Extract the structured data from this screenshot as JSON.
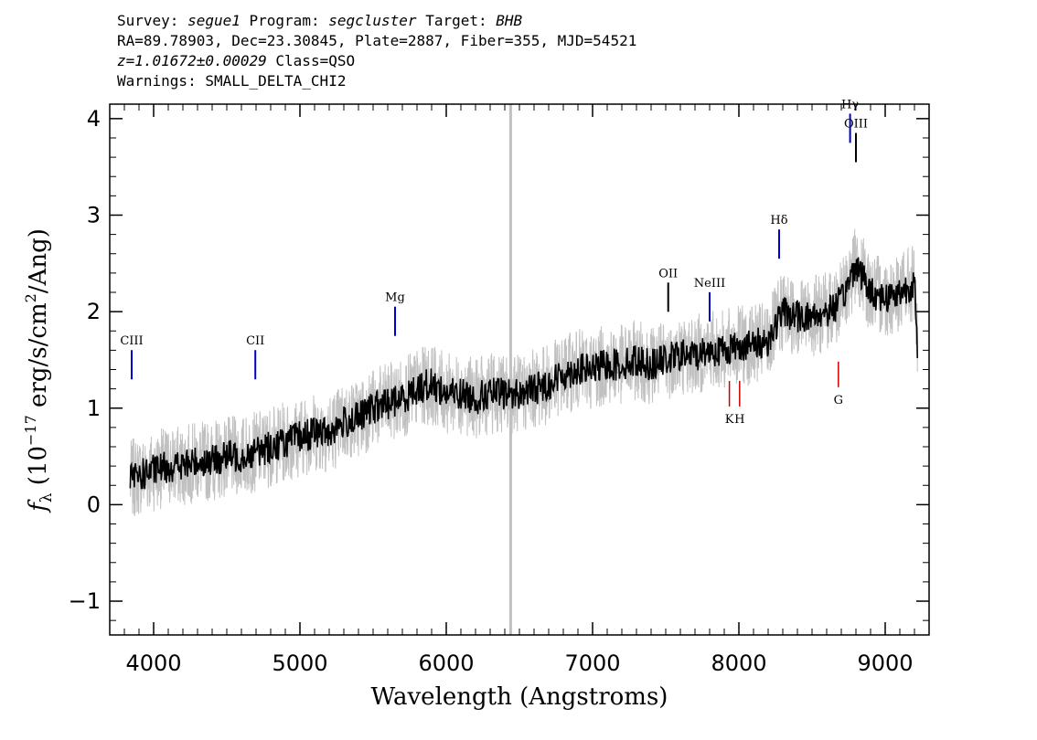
{
  "header": {
    "survey_label": "Survey:",
    "survey": "segue1",
    "program_label": "Program:",
    "program": "segcluster",
    "target_label": "Target:",
    "target": "BHB",
    "line2": "RA=89.78903, Dec=23.30845, Plate=2887, Fiber=355, MJD=54521",
    "redshift": "z=1.01672±0.00029",
    "class": "Class=QSO",
    "warnings": "Warnings: SMALL_DELTA_CHI2"
  },
  "chart_data": {
    "type": "line",
    "xlabel": "Wavelength (Angstroms)",
    "ylabel_parts": {
      "f": "f",
      "sub": "λ",
      "open": " (10",
      "exp1": "−17",
      "mid": " erg/s/cm",
      "exp2": "2",
      "close": "/Ang)"
    },
    "xlim": [
      3700,
      9300
    ],
    "ylim": [
      -1.35,
      4.15
    ],
    "x_ticks": [
      4000,
      5000,
      6000,
      7000,
      8000,
      9000
    ],
    "x_tick_labels": [
      "4000",
      "5000",
      "6000",
      "7000",
      "8000",
      "9000"
    ],
    "y_ticks": [
      -1,
      0,
      1,
      2,
      3,
      4
    ],
    "y_tick_labels": [
      "−1",
      "0",
      "1",
      "2",
      "3",
      "4"
    ],
    "masked_column_x": 6440,
    "series": [
      {
        "role": "flux",
        "color": "#c0c0c0",
        "x": [
          3840,
          3900,
          4000,
          4100,
          4200,
          4300,
          4400,
          4500,
          4600,
          4700,
          4800,
          4900,
          5000,
          5100,
          5200,
          5300,
          5400,
          5500,
          5600,
          5700,
          5800,
          5900,
          6000,
          6100,
          6200,
          6300,
          6400,
          6500,
          6600,
          6700,
          6800,
          6900,
          7000,
          7100,
          7200,
          7300,
          7400,
          7500,
          7600,
          7700,
          7800,
          7900,
          8000,
          8100,
          8200,
          8300,
          8400,
          8500,
          8600,
          8700,
          8800,
          8900,
          9000,
          9100,
          9200,
          9220
        ],
        "y": [
          0.25,
          0.3,
          0.35,
          0.4,
          0.4,
          0.45,
          0.45,
          0.5,
          0.5,
          0.55,
          0.6,
          0.65,
          0.7,
          0.75,
          0.75,
          0.85,
          0.9,
          1.0,
          1.05,
          1.1,
          1.2,
          1.25,
          1.15,
          1.15,
          1.1,
          1.15,
          1.15,
          1.15,
          1.2,
          1.25,
          1.35,
          1.4,
          1.4,
          1.45,
          1.45,
          1.5,
          1.45,
          1.5,
          1.55,
          1.55,
          1.6,
          1.6,
          1.65,
          1.65,
          1.7,
          2.0,
          1.95,
          1.95,
          2.0,
          2.1,
          2.5,
          2.2,
          2.15,
          2.2,
          2.3,
          1.6
        ]
      },
      {
        "role": "model",
        "color": "#000000",
        "x": [
          3840,
          3900,
          4000,
          4100,
          4200,
          4300,
          4400,
          4500,
          4600,
          4700,
          4800,
          4900,
          5000,
          5100,
          5200,
          5300,
          5400,
          5500,
          5600,
          5700,
          5800,
          5900,
          6000,
          6100,
          6200,
          6300,
          6400,
          6500,
          6600,
          6700,
          6800,
          6900,
          7000,
          7100,
          7200,
          7300,
          7400,
          7500,
          7600,
          7700,
          7800,
          7900,
          8000,
          8100,
          8200,
          8300,
          8400,
          8500,
          8600,
          8700,
          8800,
          8900,
          9000,
          9100,
          9200,
          9220
        ],
        "y": [
          0.25,
          0.3,
          0.35,
          0.4,
          0.4,
          0.45,
          0.45,
          0.5,
          0.5,
          0.55,
          0.6,
          0.65,
          0.7,
          0.75,
          0.75,
          0.85,
          0.9,
          1.0,
          1.05,
          1.1,
          1.2,
          1.25,
          1.15,
          1.15,
          1.1,
          1.15,
          1.15,
          1.15,
          1.2,
          1.25,
          1.35,
          1.4,
          1.4,
          1.45,
          1.45,
          1.5,
          1.45,
          1.5,
          1.55,
          1.55,
          1.6,
          1.6,
          1.65,
          1.65,
          1.7,
          2.0,
          1.95,
          1.95,
          2.0,
          2.1,
          2.5,
          2.2,
          2.15,
          2.2,
          2.3,
          1.6
        ]
      }
    ],
    "emission_lines": [
      {
        "label": "CIII",
        "x": 3850,
        "y": 1.45,
        "color": "#0000cc"
      },
      {
        "label": "CII",
        "x": 4695,
        "y": 1.45,
        "color": "#0000cc"
      },
      {
        "label": "Mg",
        "x": 5650,
        "y": 1.9,
        "color": "#0000cc"
      },
      {
        "label": "OII",
        "x": 7517,
        "y": 2.15,
        "color": "#000000"
      },
      {
        "label": "NeIII",
        "x": 7800,
        "y": 2.05,
        "color": "#0000cc"
      },
      {
        "label": "Hδ",
        "x": 8275,
        "y": 2.7,
        "color": "#0000cc"
      },
      {
        "label": "Hγ",
        "x": 8760,
        "y": 3.9,
        "color": "#0000cc"
      },
      {
        "label": "OIII",
        "x": 8800,
        "y": 3.7,
        "color": "#000000"
      }
    ],
    "absorption_lines": [
      {
        "label": "K",
        "x": 7935,
        "y": 1.15,
        "color": "#cc0000"
      },
      {
        "label": "H",
        "x": 8005,
        "y": 1.15,
        "color": "#cc0000"
      },
      {
        "label": "G",
        "x": 8680,
        "y": 1.35,
        "color": "#cc0000"
      }
    ]
  }
}
